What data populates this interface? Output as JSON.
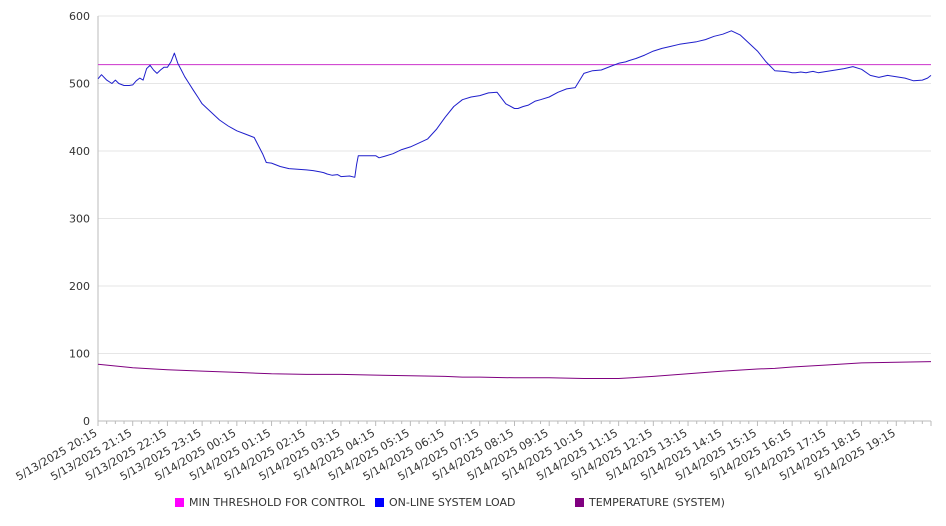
{
  "colors": {
    "threshold": "#cc33cc",
    "load": "#1f1fcc",
    "temperature": "#800080",
    "grid": "#e6e6e6",
    "axis": "#bbbbbb"
  },
  "legend": {
    "threshold_label": "MIN THRESHOLD FOR CONTROL",
    "load_label": "ON-LINE SYSTEM LOAD",
    "temperature_label": "TEMPERATURE (SYSTEM)",
    "threshold_swatch": "#ff00ff",
    "load_swatch": "#0000ff",
    "temperature_swatch": "#800080"
  },
  "chart_data": {
    "type": "line",
    "title": "",
    "xlabel": "",
    "ylabel": "",
    "ylim": [
      0,
      600
    ],
    "yticks": [
      0,
      100,
      200,
      300,
      400,
      500,
      600
    ],
    "grid": true,
    "legend_position": "bottom",
    "x_start": "5/13/2025 20:15",
    "x_end": "5/14/2025 20:15",
    "xtick_labels": [
      "5/13/2025 20:15",
      "5/13/2025 21:15",
      "5/13/2025 22:15",
      "5/13/2025 23:15",
      "5/14/2025 00:15",
      "5/14/2025 01:15",
      "5/14/2025 02:15",
      "5/14/2025 03:15",
      "5/14/2025 04:15",
      "5/14/2025 05:15",
      "5/14/2025 06:15",
      "5/14/2025 07:15",
      "5/14/2025 08:15",
      "5/14/2025 09:15",
      "5/14/2025 10:15",
      "5/14/2025 11:15",
      "5/14/2025 12:15",
      "5/14/2025 13:15",
      "5/14/2025 14:15",
      "5/14/2025 15:15",
      "5/14/2025 16:15",
      "5/14/2025 17:15",
      "5/14/2025 18:15",
      "5/14/2025 19:15"
    ],
    "series": [
      {
        "name": "MIN THRESHOLD FOR CONTROL",
        "hours": [
          0,
          24
        ],
        "values": [
          528,
          528
        ]
      },
      {
        "name": "ON-LINE SYSTEM LOAD",
        "hours": [
          0,
          0.1,
          0.25,
          0.4,
          0.5,
          0.6,
          0.75,
          0.9,
          1.0,
          1.1,
          1.2,
          1.3,
          1.4,
          1.5,
          1.6,
          1.7,
          1.8,
          1.9,
          2.0,
          2.1,
          2.2,
          2.3,
          2.4,
          2.5,
          2.6,
          2.75,
          2.9,
          3.0,
          3.25,
          3.5,
          3.75,
          4.0,
          4.25,
          4.5,
          4.75,
          4.85,
          5.0,
          5.25,
          5.5,
          5.75,
          6.0,
          6.2,
          6.4,
          6.5,
          6.6,
          6.75,
          6.9,
          7.0,
          7.25,
          7.4,
          7.45,
          7.5,
          7.6,
          7.75,
          7.9,
          8.0,
          8.1,
          8.25,
          8.5,
          8.75,
          9.0,
          9.25,
          9.5,
          9.75,
          10.0,
          10.25,
          10.5,
          10.75,
          11.0,
          11.25,
          11.5,
          11.75,
          12.0,
          12.1,
          12.25,
          12.4,
          12.5,
          12.6,
          12.75,
          13.0,
          13.25,
          13.5,
          13.75,
          14.0,
          14.25,
          14.5,
          14.75,
          15.0,
          15.2,
          15.3,
          15.5,
          15.75,
          16.0,
          16.25,
          16.5,
          16.75,
          17.0,
          17.25,
          17.5,
          17.75,
          18.0,
          18.25,
          18.5,
          18.75,
          19.0,
          19.25,
          19.5,
          19.75,
          19.9,
          20.0,
          20.1,
          20.25,
          20.4,
          20.5,
          20.6,
          20.75,
          21.0,
          21.25,
          21.5,
          21.75,
          22.0,
          22.25,
          22.5,
          22.75,
          23.0,
          23.25,
          23.5,
          23.75,
          23.9,
          24.0
        ],
        "values": [
          507,
          513,
          505,
          500,
          505,
          500,
          497,
          497,
          498,
          504,
          508,
          505,
          522,
          527,
          520,
          515,
          520,
          524,
          524,
          532,
          545,
          530,
          520,
          510,
          502,
          490,
          478,
          470,
          458,
          446,
          437,
          430,
          425,
          420,
          395,
          383,
          382,
          377,
          374,
          373,
          372,
          371,
          369,
          368,
          366,
          364,
          365,
          362,
          363,
          361,
          380,
          393,
          393,
          393,
          393,
          393,
          390,
          392,
          396,
          402,
          406,
          412,
          418,
          432,
          450,
          466,
          476,
          480,
          482,
          486,
          487,
          470,
          463,
          463,
          466,
          468,
          471,
          474,
          476,
          480,
          487,
          492,
          494,
          515,
          519,
          520,
          525,
          530,
          532,
          534,
          537,
          542,
          548,
          552,
          555,
          558,
          560,
          562,
          565,
          570,
          573,
          578,
          572,
          560,
          548,
          532,
          519,
          518,
          517,
          516,
          516,
          517,
          516,
          517,
          518,
          516,
          518,
          520,
          522,
          525,
          521,
          512,
          509,
          512,
          510,
          508,
          504,
          505,
          508,
          512
        ]
      },
      {
        "name": "TEMPERATURE (SYSTEM)",
        "hours": [
          0,
          1,
          2,
          3,
          4,
          5,
          6,
          7,
          8,
          9,
          10,
          10.5,
          11,
          12,
          13,
          14,
          15,
          16,
          17,
          18,
          19,
          19.5,
          20,
          21,
          22,
          23,
          24
        ],
        "values": [
          84,
          79,
          76,
          74,
          72,
          70,
          69,
          69,
          68,
          67,
          66,
          65,
          65,
          64,
          64,
          63,
          63,
          66,
          70,
          74,
          77,
          78,
          80,
          83,
          86,
          87,
          88
        ]
      }
    ]
  }
}
